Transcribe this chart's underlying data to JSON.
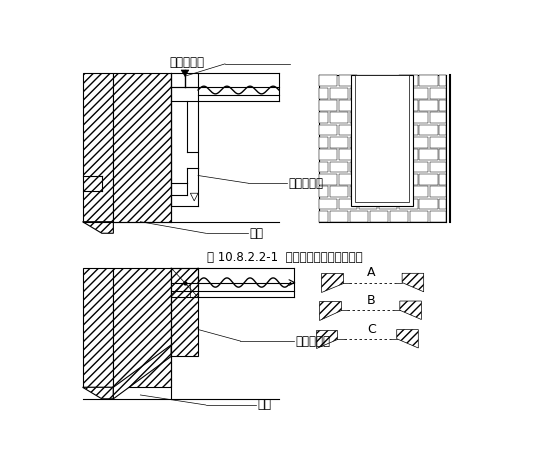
{
  "title": "图 10.8.2.2-1  钙木质防火门结构安装图",
  "label_dading": "打钉拉铁皮",
  "label_gang": "钙防火门框",
  "label_qiang1": "墙体",
  "label_fanghua": "防火木门框",
  "label_qiang2": "墙体",
  "label_A": "A",
  "label_B": "B",
  "label_C": "C",
  "bg": "#ffffff",
  "lc": "#000000"
}
